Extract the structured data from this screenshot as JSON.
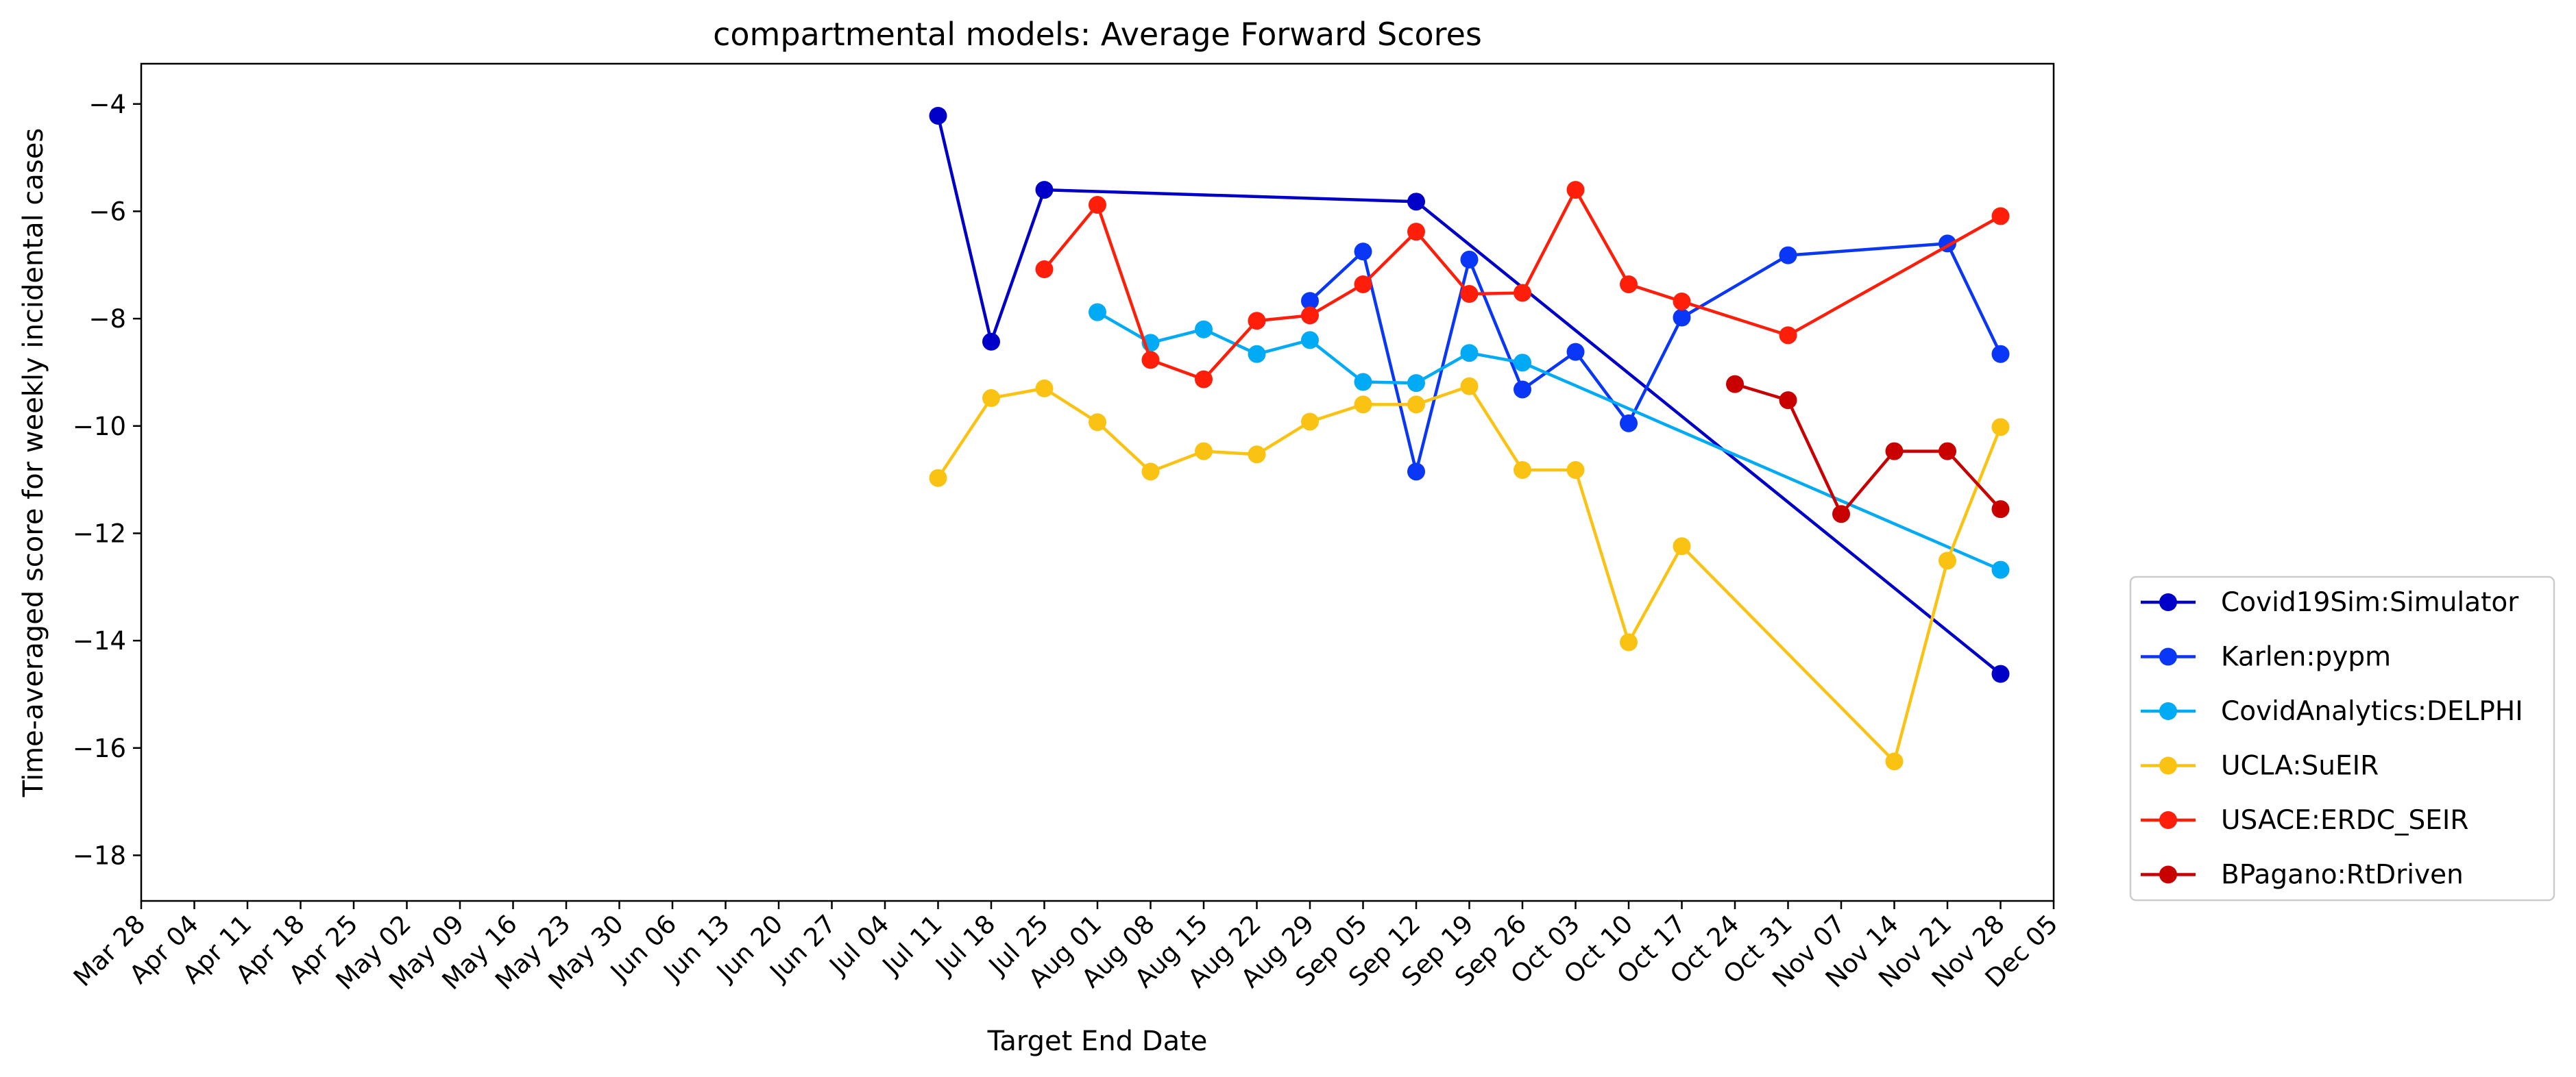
{
  "chart_data": {
    "type": "line",
    "title": "compartmental models: Average Forward Scores",
    "xlabel": "Target End Date",
    "ylabel": "Time-averaged score for weekly incidental cases",
    "year": 2020,
    "xlim": [
      "2020-03-28",
      "2020-12-05"
    ],
    "ylim": [
      -18.85,
      -3.25
    ],
    "x_ticks": [
      "Mar 28",
      "Apr 04",
      "Apr 11",
      "Apr 18",
      "Apr 25",
      "May 02",
      "May 09",
      "May 16",
      "May 23",
      "May 30",
      "Jun 06",
      "Jun 13",
      "Jun 20",
      "Jun 27",
      "Jul 04",
      "Jul 11",
      "Jul 18",
      "Jul 25",
      "Aug 01",
      "Aug 08",
      "Aug 15",
      "Aug 22",
      "Aug 29",
      "Sep 05",
      "Sep 12",
      "Sep 19",
      "Sep 26",
      "Oct 03",
      "Oct 10",
      "Oct 17",
      "Oct 24",
      "Oct 31",
      "Nov 07",
      "Nov 14",
      "Nov 21",
      "Nov 28",
      "Dec 05"
    ],
    "y_ticks": [
      -18,
      -16,
      -14,
      -12,
      -10,
      -8,
      -6,
      -4
    ],
    "legend_position": "outside-lower-right",
    "grid": false,
    "series": [
      {
        "name": "Covid19Sim:Simulator",
        "color": "#0000c8",
        "points": [
          [
            "2020-07-11",
            -4.22
          ],
          [
            "2020-07-18",
            -8.43
          ],
          [
            "2020-07-25",
            -5.6
          ],
          [
            "2020-09-12",
            -5.82
          ],
          [
            "2020-11-28",
            -14.62
          ]
        ]
      },
      {
        "name": "Karlen:pypm",
        "color": "#0a37f5",
        "points": [
          [
            "2020-08-29",
            -7.67
          ],
          [
            "2020-09-05",
            -6.75
          ],
          [
            "2020-09-12",
            -10.85
          ],
          [
            "2020-09-19",
            -6.9
          ],
          [
            "2020-09-26",
            -9.32
          ],
          [
            "2020-10-03",
            -8.62
          ],
          [
            "2020-10-10",
            -9.95
          ],
          [
            "2020-10-17",
            -7.98
          ],
          [
            "2020-10-31",
            -6.82
          ],
          [
            "2020-11-21",
            -6.6
          ],
          [
            "2020-11-28",
            -8.66
          ]
        ]
      },
      {
        "name": "CovidAnalytics:DELPHI",
        "color": "#00aaf5",
        "points": [
          [
            "2020-08-01",
            -7.88
          ],
          [
            "2020-08-08",
            -8.45
          ],
          [
            "2020-08-15",
            -8.2
          ],
          [
            "2020-08-22",
            -8.66
          ],
          [
            "2020-08-29",
            -8.4
          ],
          [
            "2020-09-05",
            -9.18
          ],
          [
            "2020-09-12",
            -9.2
          ],
          [
            "2020-09-19",
            -8.64
          ],
          [
            "2020-09-26",
            -8.82
          ],
          [
            "2020-11-28",
            -12.68
          ]
        ]
      },
      {
        "name": "UCLA:SuEIR",
        "color": "#fac314",
        "points": [
          [
            "2020-07-11",
            -10.97
          ],
          [
            "2020-07-18",
            -9.48
          ],
          [
            "2020-07-25",
            -9.3
          ],
          [
            "2020-08-01",
            -9.93
          ],
          [
            "2020-08-08",
            -10.85
          ],
          [
            "2020-08-15",
            -10.47
          ],
          [
            "2020-08-22",
            -10.53
          ],
          [
            "2020-08-29",
            -9.92
          ],
          [
            "2020-09-05",
            -9.6
          ],
          [
            "2020-09-12",
            -9.6
          ],
          [
            "2020-09-19",
            -9.26
          ],
          [
            "2020-09-26",
            -10.82
          ],
          [
            "2020-10-03",
            -10.82
          ],
          [
            "2020-10-10",
            -14.03
          ],
          [
            "2020-10-17",
            -12.24
          ],
          [
            "2020-11-14",
            -16.25
          ],
          [
            "2020-11-21",
            -12.51
          ],
          [
            "2020-11-28",
            -10.02
          ]
        ]
      },
      {
        "name": "USACE:ERDC_SEIR",
        "color": "#ff1e0a",
        "points": [
          [
            "2020-07-25",
            -7.08
          ],
          [
            "2020-08-01",
            -5.88
          ],
          [
            "2020-08-08",
            -8.77
          ],
          [
            "2020-08-15",
            -9.13
          ],
          [
            "2020-08-22",
            -8.04
          ],
          [
            "2020-08-29",
            -7.94
          ],
          [
            "2020-09-05",
            -7.36
          ],
          [
            "2020-09-12",
            -6.38
          ],
          [
            "2020-09-19",
            -7.54
          ],
          [
            "2020-09-26",
            -7.52
          ],
          [
            "2020-10-03",
            -5.6
          ],
          [
            "2020-10-10",
            -7.36
          ],
          [
            "2020-10-17",
            -7.68
          ],
          [
            "2020-10-31",
            -8.31
          ],
          [
            "2020-11-28",
            -6.09
          ]
        ]
      },
      {
        "name": "BPagano:RtDriven",
        "color": "#c80000",
        "points": [
          [
            "2020-10-24",
            -9.22
          ],
          [
            "2020-10-31",
            -9.52
          ],
          [
            "2020-11-07",
            -11.64
          ],
          [
            "2020-11-14",
            -10.47
          ],
          [
            "2020-11-21",
            -10.47
          ],
          [
            "2020-11-28",
            -11.55
          ]
        ]
      }
    ]
  }
}
